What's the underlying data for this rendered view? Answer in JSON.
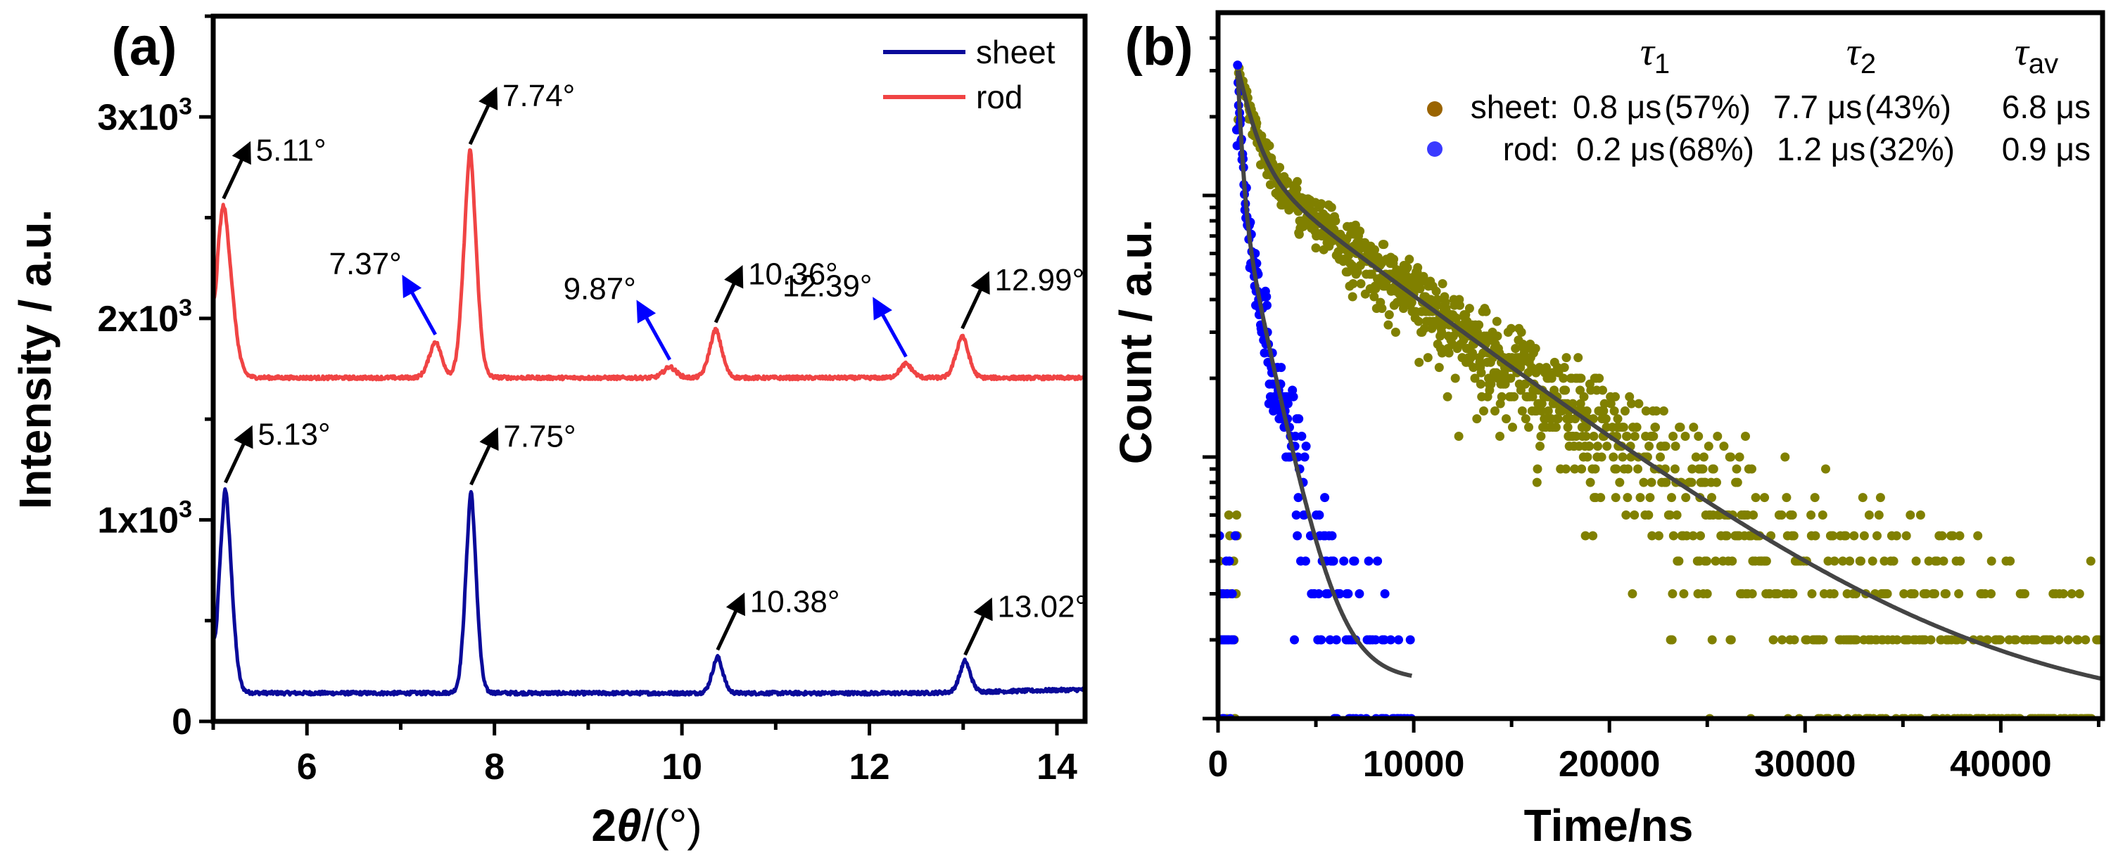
{
  "chart_data": [
    {
      "panel": "(a)",
      "type": "line",
      "title": "",
      "xlabel": "2θ/(°)",
      "xlabel_parts": {
        "prefix": "2",
        "symbol": "θ",
        "suffix": "/(°)"
      },
      "ylabel": "Intensity / a.u.",
      "xlim": [
        5.0,
        14.3
      ],
      "ylim": [
        0,
        3500
      ],
      "xticks": [
        6,
        8,
        10,
        12,
        14
      ],
      "xtick_labels": [
        "6",
        "8",
        "10",
        "12",
        "14"
      ],
      "yticks": [
        0,
        1000,
        2000,
        3000
      ],
      "ytick_labels": [
        "0",
        "1x10",
        "2x10",
        "3x10"
      ],
      "ytick_exponent": "3",
      "legend": {
        "placement": "top-right",
        "entries": [
          {
            "name": "sheet",
            "color": "#0a0a9a"
          },
          {
            "name": "rod",
            "color": "#f04444"
          }
        ]
      },
      "series": [
        {
          "name": "sheet",
          "color": "#0a0a9a",
          "baseline": 140,
          "start_value": 430,
          "peaks": [
            {
              "x": 5.13,
              "y": 1150,
              "width": 0.07
            },
            {
              "x": 7.75,
              "y": 1140,
              "width": 0.06
            },
            {
              "x": 10.38,
              "y": 320,
              "width": 0.06
            },
            {
              "x": 13.02,
              "y": 295,
              "width": 0.06
            }
          ]
        },
        {
          "name": "rod",
          "color": "#f04444",
          "baseline": 1705,
          "start_value": 2090,
          "peaks": [
            {
              "x": 5.11,
              "y": 2560,
              "width": 0.09
            },
            {
              "x": 7.37,
              "y": 1885,
              "width": 0.07
            },
            {
              "x": 7.74,
              "y": 2830,
              "width": 0.07
            },
            {
              "x": 9.87,
              "y": 1760,
              "width": 0.07
            },
            {
              "x": 10.36,
              "y": 1945,
              "width": 0.07
            },
            {
              "x": 12.39,
              "y": 1775,
              "width": 0.07
            },
            {
              "x": 12.99,
              "y": 1915,
              "width": 0.07
            }
          ]
        }
      ],
      "annotations": [
        {
          "text": "5.11°",
          "series": "rod",
          "x": 5.11,
          "arrow_color": "#000000",
          "direction": "up-right"
        },
        {
          "text": "7.37°",
          "series": "rod",
          "x": 7.37,
          "arrow_color": "#0000ff",
          "direction": "up-left"
        },
        {
          "text": "7.74°",
          "series": "rod",
          "x": 7.74,
          "arrow_color": "#000000",
          "direction": "up-right"
        },
        {
          "text": "9.87°",
          "series": "rod",
          "x": 9.87,
          "arrow_color": "#0000ff",
          "direction": "up-left"
        },
        {
          "text": "10.36°",
          "series": "rod",
          "x": 10.36,
          "arrow_color": "#000000",
          "direction": "up-right"
        },
        {
          "text": "12.39°",
          "series": "rod",
          "x": 12.39,
          "arrow_color": "#0000ff",
          "direction": "up-left"
        },
        {
          "text": "12.99°",
          "series": "rod",
          "x": 12.99,
          "arrow_color": "#000000",
          "direction": "up-right"
        },
        {
          "text": "5.13°",
          "series": "sheet",
          "x": 5.13,
          "arrow_color": "#000000",
          "direction": "up-right"
        },
        {
          "text": "7.75°",
          "series": "sheet",
          "x": 7.75,
          "arrow_color": "#000000",
          "direction": "up-right"
        },
        {
          "text": "10.38°",
          "series": "sheet",
          "x": 10.38,
          "arrow_color": "#000000",
          "direction": "up-right"
        },
        {
          "text": "13.02°",
          "series": "sheet",
          "x": 13.02,
          "arrow_color": "#000000",
          "direction": "up-right"
        }
      ]
    },
    {
      "panel": "(b)",
      "type": "scatter",
      "title": "",
      "xlabel": "Time/ns",
      "ylabel": "Count / a.u.",
      "xlim": [
        0,
        45200
      ],
      "ylim_log10": [
        0,
        2.7
      ],
      "yscale": "log",
      "xticks": [
        0,
        10000,
        20000,
        30000,
        40000
      ],
      "xtick_labels": [
        "0",
        "10000",
        "20000",
        "30000",
        "40000"
      ],
      "ytick_labels_visible": false,
      "legend": {
        "placement": "top-right",
        "headers": [
          {
            "symbol": "τ",
            "sub": "1"
          },
          {
            "symbol": "τ",
            "sub": "2"
          },
          {
            "symbol": "τ",
            "sub": "av"
          }
        ],
        "rows": [
          {
            "name": "sheet:",
            "marker_color": "#9a6400",
            "tau1": "0.8 μs",
            "tau1_pct": "(57%)",
            "tau2": "7.7 μs",
            "tau2_pct": "(43%)",
            "tau_av": "6.8 μs"
          },
          {
            "name": "rod:",
            "marker_color": "#3a3aff",
            "tau1": "0.2 μs",
            "tau1_pct": "(68%)",
            "tau2": "1.2 μs",
            "tau2_pct": "(32%)",
            "tau_av": "0.9 μs"
          }
        ]
      },
      "series": [
        {
          "name": "sheet",
          "color": "#808000",
          "peak_time_ns": 1050,
          "peak_count": 300,
          "tau1_ns": 800,
          "a1": 0.57,
          "tau2_ns": 7700,
          "a2": 0.43,
          "background": 1.0,
          "t_end_ns": 45200
        },
        {
          "name": "rod",
          "color": "#0000ff",
          "peak_time_ns": 1000,
          "peak_count": 300,
          "tau1_ns": 200,
          "a1": 0.68,
          "tau2_ns": 1200,
          "a2": 0.32,
          "background": 1.4,
          "t_end_ns": 9900
        }
      ],
      "fit_color": "#444444"
    }
  ]
}
